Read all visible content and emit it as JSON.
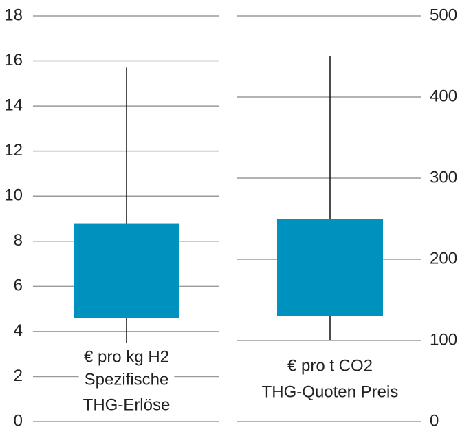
{
  "chart_data": [
    {
      "type": "box",
      "label_lines": [
        "€ pro kg H2",
        "Spezifische",
        "THG-Erlöse"
      ],
      "whisker_low": 3.5,
      "box_low": 4.6,
      "box_high": 8.8,
      "whisker_high": 15.7,
      "ylim": [
        0,
        18
      ],
      "yticks": [
        0,
        2,
        4,
        6,
        8,
        10,
        12,
        14,
        16,
        18
      ],
      "axis_side": "left",
      "color": "#0092bf"
    },
    {
      "type": "box",
      "label_lines": [
        "€ pro t CO2",
        "THG-Quoten Preis"
      ],
      "whisker_low": 100,
      "box_low": 130,
      "box_high": 250,
      "whisker_high": 450,
      "ylim": [
        0,
        500
      ],
      "yticks": [
        0,
        100,
        200,
        300,
        400,
        500
      ],
      "axis_side": "right",
      "color": "#0092bf"
    }
  ]
}
